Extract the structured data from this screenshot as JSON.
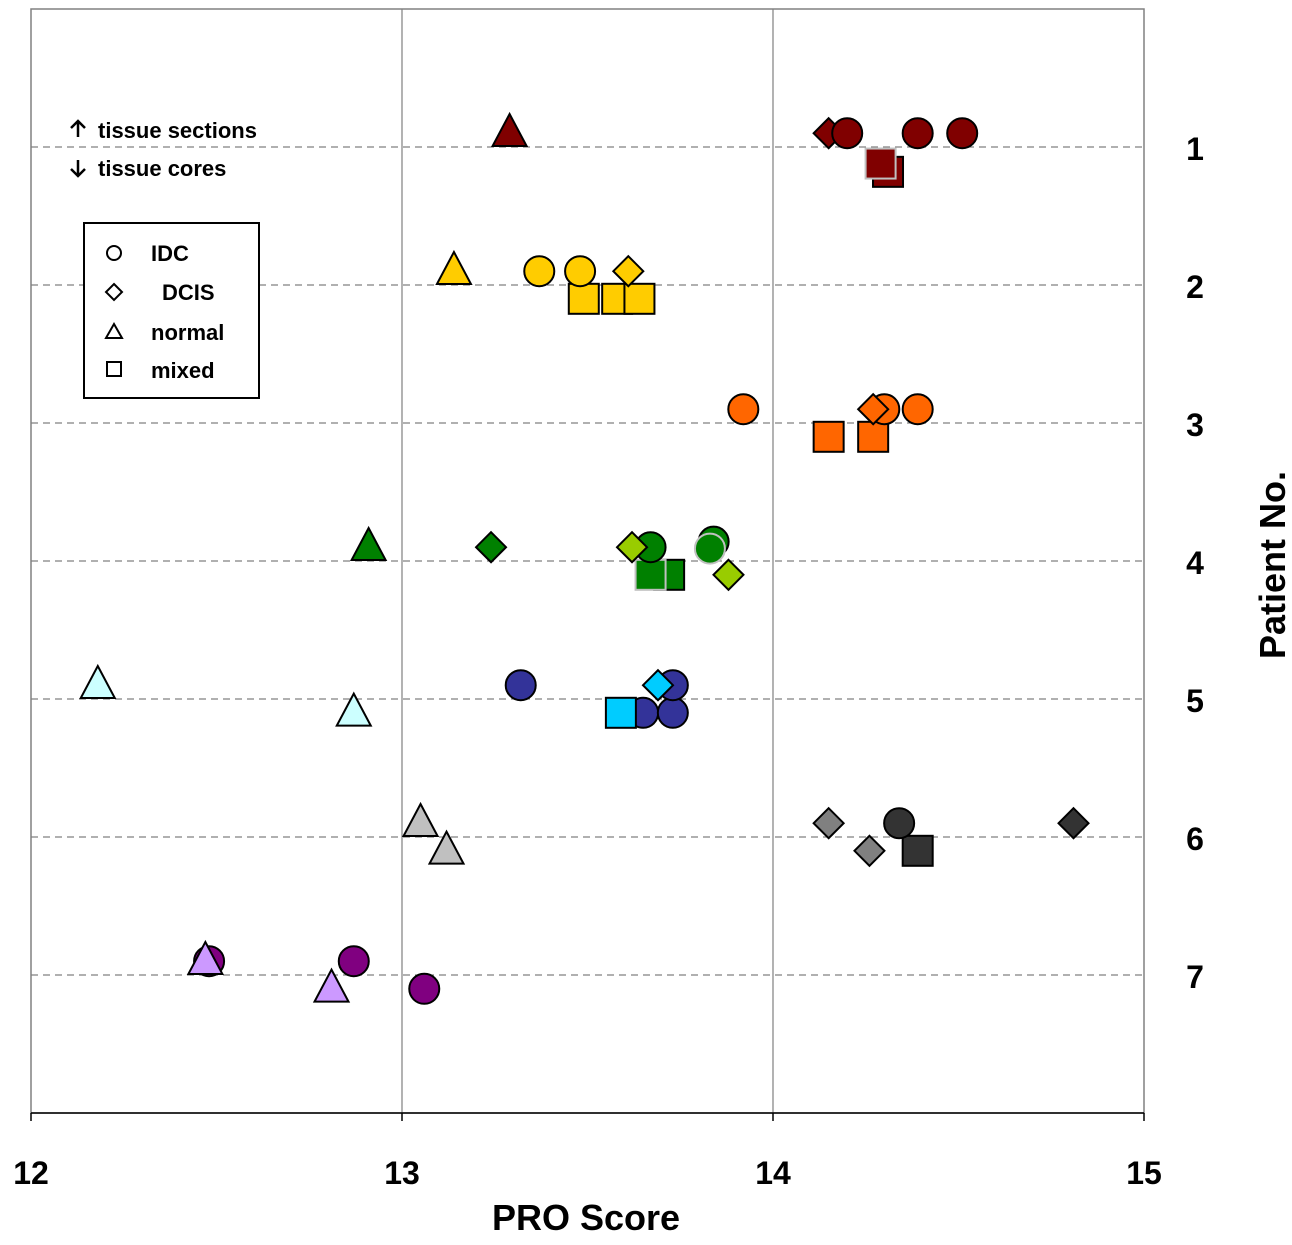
{
  "chart_data": {
    "type": "scatter",
    "xlabel": "PRO Score",
    "ylabel": "Patient No.",
    "xlim": [
      12,
      15
    ],
    "x_ticks": [
      "12",
      "13",
      "14",
      "15"
    ],
    "patients": [
      "1",
      "2",
      "3",
      "4",
      "5",
      "6",
      "7"
    ],
    "ylim": [
      0,
      7.9
    ],
    "grid": "vertical solid at 13 and 14; dashed at each patient",
    "annotations": {
      "sections": "tissue sections",
      "cores": "tissue cores"
    },
    "legend": {
      "placement": "top-left",
      "entries": [
        {
          "shape": "circle",
          "label": "IDC"
        },
        {
          "shape": "diamond",
          "label": "DCIS"
        },
        {
          "shape": "triangle",
          "label": "normal"
        },
        {
          "shape": "square",
          "label": "mixed"
        }
      ]
    },
    "patient_colors": {
      "1": "#800000",
      "2": "#ffcc00",
      "3": "#ff6600",
      "4": "#008000",
      "4_light": "#99cc00",
      "5": "#333399",
      "5_light": "#00ccff",
      "5_pale": "#ccffff",
      "6": "#333333",
      "6_mid": "#808080",
      "6_light": "#c0c0c0",
      "7": "#800080",
      "7_light": "#cc99ff"
    },
    "points": [
      {
        "patient": 1,
        "x": 14.31,
        "y": 1.18,
        "shape": "square",
        "color": "#800000",
        "stroke": "#000000"
      },
      {
        "patient": 1,
        "x": 14.29,
        "y": 1.12,
        "shape": "square",
        "color": "#800000",
        "stroke": "#c0c0c0"
      },
      {
        "patient": 1,
        "x": 13.29,
        "y": 0.9,
        "shape": "triangle",
        "color": "#800000",
        "stroke": "#000000"
      },
      {
        "patient": 1,
        "x": 14.15,
        "y": 0.9,
        "shape": "diamond",
        "color": "#800000",
        "stroke": "#000000"
      },
      {
        "patient": 1,
        "x": 14.2,
        "y": 0.9,
        "shape": "circle",
        "color": "#800000",
        "stroke": "#000000"
      },
      {
        "patient": 1,
        "x": 14.39,
        "y": 0.9,
        "shape": "circle",
        "color": "#800000",
        "stroke": "#000000"
      },
      {
        "patient": 1,
        "x": 14.51,
        "y": 0.9,
        "shape": "circle",
        "color": "#800000",
        "stroke": "#000000"
      },
      {
        "patient": 2,
        "x": 13.49,
        "y": 2.1,
        "shape": "square",
        "color": "#ffcc00",
        "stroke": "#000000"
      },
      {
        "patient": 2,
        "x": 13.58,
        "y": 2.1,
        "shape": "square",
        "color": "#ffcc00",
        "stroke": "#000000"
      },
      {
        "patient": 2,
        "x": 13.64,
        "y": 2.1,
        "shape": "square",
        "color": "#ffcc00",
        "stroke": "#000000"
      },
      {
        "patient": 2,
        "x": 13.14,
        "y": 1.9,
        "shape": "triangle",
        "color": "#ffcc00",
        "stroke": "#000000"
      },
      {
        "patient": 2,
        "x": 13.37,
        "y": 1.9,
        "shape": "circle",
        "color": "#ffcc00",
        "stroke": "#000000"
      },
      {
        "patient": 2,
        "x": 13.48,
        "y": 1.9,
        "shape": "circle",
        "color": "#ffcc00",
        "stroke": "#000000"
      },
      {
        "patient": 2,
        "x": 13.61,
        "y": 1.9,
        "shape": "diamond",
        "color": "#ffcc00",
        "stroke": "#000000"
      },
      {
        "patient": 3,
        "x": 14.15,
        "y": 3.1,
        "shape": "square",
        "color": "#ff6600",
        "stroke": "#000000"
      },
      {
        "patient": 3,
        "x": 14.27,
        "y": 3.1,
        "shape": "square",
        "color": "#ff6600",
        "stroke": "#000000"
      },
      {
        "patient": 3,
        "x": 13.92,
        "y": 2.9,
        "shape": "circle",
        "color": "#ff6600",
        "stroke": "#000000"
      },
      {
        "patient": 3,
        "x": 14.3,
        "y": 2.9,
        "shape": "circle",
        "color": "#ff6600",
        "stroke": "#000000"
      },
      {
        "patient": 3,
        "x": 14.27,
        "y": 2.9,
        "shape": "diamond",
        "color": "#ff6600",
        "stroke": "#000000"
      },
      {
        "patient": 3,
        "x": 14.39,
        "y": 2.9,
        "shape": "circle",
        "color": "#ff6600",
        "stroke": "#000000"
      },
      {
        "patient": 4,
        "x": 13.72,
        "y": 4.1,
        "shape": "square",
        "color": "#008000",
        "stroke": "#000000"
      },
      {
        "patient": 4,
        "x": 13.67,
        "y": 4.1,
        "shape": "square",
        "color": "#008000",
        "stroke": "#c0c0c0"
      },
      {
        "patient": 4,
        "x": 13.88,
        "y": 4.1,
        "shape": "diamond",
        "color": "#99cc00",
        "stroke": "#000000"
      },
      {
        "patient": 4,
        "x": 12.91,
        "y": 3.9,
        "shape": "triangle",
        "color": "#008000",
        "stroke": "#000000"
      },
      {
        "patient": 4,
        "x": 13.24,
        "y": 3.9,
        "shape": "diamond",
        "color": "#008000",
        "stroke": "#000000"
      },
      {
        "patient": 4,
        "x": 13.67,
        "y": 3.9,
        "shape": "circle",
        "color": "#008000",
        "stroke": "#000000"
      },
      {
        "patient": 4,
        "x": 13.62,
        "y": 3.9,
        "shape": "diamond",
        "color": "#99cc00",
        "stroke": "#000000"
      },
      {
        "patient": 4,
        "x": 13.84,
        "y": 3.86,
        "shape": "circle",
        "color": "#008000",
        "stroke": "#000000"
      },
      {
        "patient": 4,
        "x": 13.83,
        "y": 3.91,
        "shape": "circle",
        "color": "#008000",
        "stroke": "#c0c0c0"
      },
      {
        "patient": 5,
        "x": 12.87,
        "y": 5.1,
        "shape": "triangle",
        "color": "#ccffff",
        "stroke": "#000000"
      },
      {
        "patient": 5,
        "x": 13.65,
        "y": 5.1,
        "shape": "circle",
        "color": "#333399",
        "stroke": "#000000"
      },
      {
        "patient": 5,
        "x": 13.73,
        "y": 5.1,
        "shape": "circle",
        "color": "#333399",
        "stroke": "#000000"
      },
      {
        "patient": 5,
        "x": 13.59,
        "y": 5.1,
        "shape": "square",
        "color": "#00ccff",
        "stroke": "#000000"
      },
      {
        "patient": 5,
        "x": 12.18,
        "y": 4.9,
        "shape": "triangle",
        "color": "#ccffff",
        "stroke": "#000000"
      },
      {
        "patient": 5,
        "x": 13.32,
        "y": 4.9,
        "shape": "circle",
        "color": "#333399",
        "stroke": "#000000"
      },
      {
        "patient": 5,
        "x": 13.73,
        "y": 4.9,
        "shape": "circle",
        "color": "#333399",
        "stroke": "#000000"
      },
      {
        "patient": 5,
        "x": 13.69,
        "y": 4.9,
        "shape": "diamond",
        "color": "#00ccff",
        "stroke": "#000000"
      },
      {
        "patient": 6,
        "x": 13.12,
        "y": 6.1,
        "shape": "triangle",
        "color": "#c0c0c0",
        "stroke": "#000000"
      },
      {
        "patient": 6,
        "x": 14.26,
        "y": 6.1,
        "shape": "diamond",
        "color": "#808080",
        "stroke": "#000000"
      },
      {
        "patient": 6,
        "x": 14.39,
        "y": 6.1,
        "shape": "square",
        "color": "#333333",
        "stroke": "#000000"
      },
      {
        "patient": 6,
        "x": 13.05,
        "y": 5.9,
        "shape": "triangle",
        "color": "#c0c0c0",
        "stroke": "#000000"
      },
      {
        "patient": 6,
        "x": 14.15,
        "y": 5.9,
        "shape": "diamond",
        "color": "#808080",
        "stroke": "#000000"
      },
      {
        "patient": 6,
        "x": 14.34,
        "y": 5.9,
        "shape": "circle",
        "color": "#333333",
        "stroke": "#000000"
      },
      {
        "patient": 6,
        "x": 14.81,
        "y": 5.9,
        "shape": "diamond",
        "color": "#333333",
        "stroke": "#000000"
      },
      {
        "patient": 7,
        "x": 13.06,
        "y": 7.1,
        "shape": "circle",
        "color": "#800080",
        "stroke": "#000000"
      },
      {
        "patient": 7,
        "x": 12.81,
        "y": 7.1,
        "shape": "triangle",
        "color": "#cc99ff",
        "stroke": "#000000"
      },
      {
        "patient": 7,
        "x": 12.48,
        "y": 6.9,
        "shape": "circle",
        "color": "#800080",
        "stroke": "#000000"
      },
      {
        "patient": 7,
        "x": 12.47,
        "y": 6.9,
        "shape": "triangle",
        "color": "#cc99ff",
        "stroke": "#000000"
      },
      {
        "patient": 7,
        "x": 12.87,
        "y": 6.9,
        "shape": "circle",
        "color": "#800080",
        "stroke": "#000000"
      }
    ]
  }
}
